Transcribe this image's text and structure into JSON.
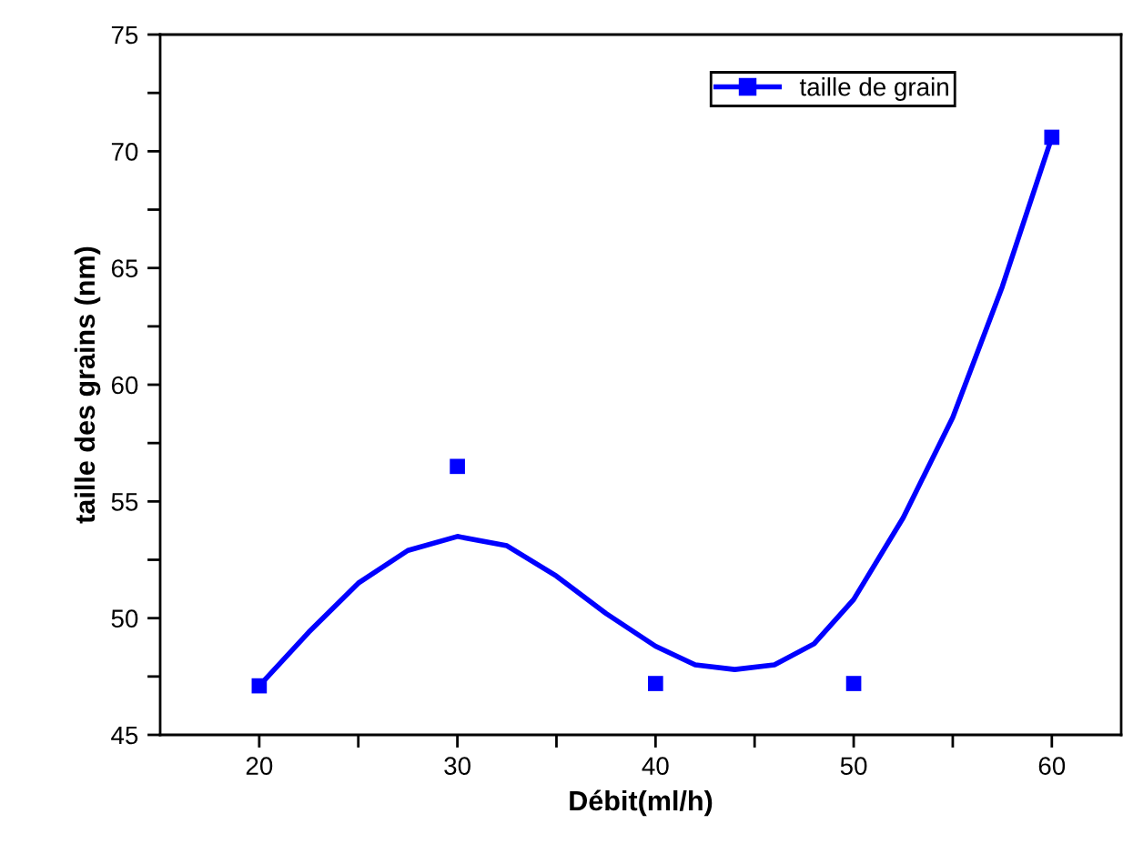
{
  "chart_data": {
    "type": "scatter",
    "xlabel": "Débit(ml/h)",
    "ylabel": "taille des grains (nm)",
    "xlim": [
      15,
      63.5
    ],
    "ylim": [
      45,
      75
    ],
    "xticks": [
      20,
      {
        "value": 25,
        "label": null
      },
      30,
      {
        "value": 35,
        "label": null
      },
      40,
      {
        "value": 45,
        "label": null
      },
      50,
      {
        "value": 55,
        "label": null
      },
      60
    ],
    "yticks": [
      45,
      {
        "value": 47.5,
        "label": null
      },
      50,
      {
        "value": 52.5,
        "label": null
      },
      55,
      {
        "value": 57.5,
        "label": null
      },
      60,
      {
        "value": 62.5,
        "label": null
      },
      65,
      {
        "value": 67.5,
        "label": null
      },
      70,
      {
        "value": 72.5,
        "label": null
      },
      75
    ],
    "legend": "top right",
    "grid": false,
    "series": [
      {
        "name": "taille de grain",
        "marker": "square",
        "color": "#0000ff",
        "x": [
          20,
          30,
          40,
          50,
          60
        ],
        "values": [
          47.1,
          56.5,
          47.2,
          47.2,
          70.6
        ]
      },
      {
        "type": "line",
        "line_style": "solid",
        "color": "#0000ff",
        "x": [
          20,
          22.5,
          25,
          27.5,
          30,
          32.5,
          35,
          37.5,
          40,
          42,
          44,
          46,
          48,
          50,
          52.5,
          55,
          57.5,
          60
        ],
        "values": [
          47.1,
          49.4,
          51.5,
          52.9,
          53.5,
          53.1,
          51.8,
          50.2,
          48.8,
          48.0,
          47.8,
          48.0,
          48.9,
          50.8,
          54.3,
          58.6,
          64.2,
          70.6
        ]
      }
    ]
  }
}
